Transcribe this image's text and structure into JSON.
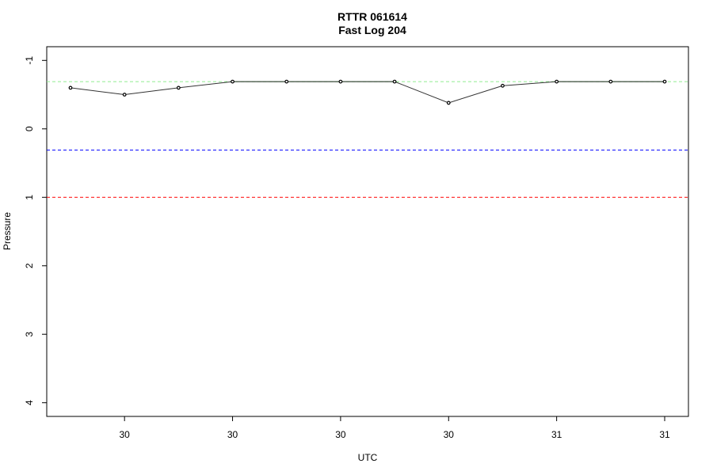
{
  "chart_data": {
    "type": "line",
    "title": "RTTR 061614",
    "subtitle": "Fast Log 204",
    "xlabel": "UTC",
    "ylabel": "Pressure",
    "y_axis_inverted": true,
    "ylim": [
      4.2,
      -1.2
    ],
    "yticks": [
      -1,
      0,
      1,
      2,
      3,
      4
    ],
    "xticks": [
      "30",
      "30",
      "30",
      "30",
      "31",
      "31"
    ],
    "grid": false,
    "series": [
      {
        "color": "#333333",
        "marker": "circle",
        "values": [
          -0.6,
          -0.5,
          -0.6,
          -0.69,
          -0.69,
          -0.69,
          -0.69,
          -0.38,
          -0.63,
          -0.69,
          -0.69,
          -0.69
        ]
      }
    ],
    "reference_lines": [
      {
        "y": -0.69,
        "color": "#90ee90",
        "style": "dashed"
      },
      {
        "y": 0.31,
        "color": "#0000ff",
        "style": "dashed"
      },
      {
        "y": 1.0,
        "color": "#ff0000",
        "style": "dashed"
      }
    ],
    "extra_segments": [
      {
        "from_index": 3,
        "to_index": 6,
        "y": -0.69,
        "color": "#228b22"
      },
      {
        "from_index": 9,
        "to_index": 11,
        "y": -0.69,
        "color": "#228b22"
      }
    ]
  }
}
